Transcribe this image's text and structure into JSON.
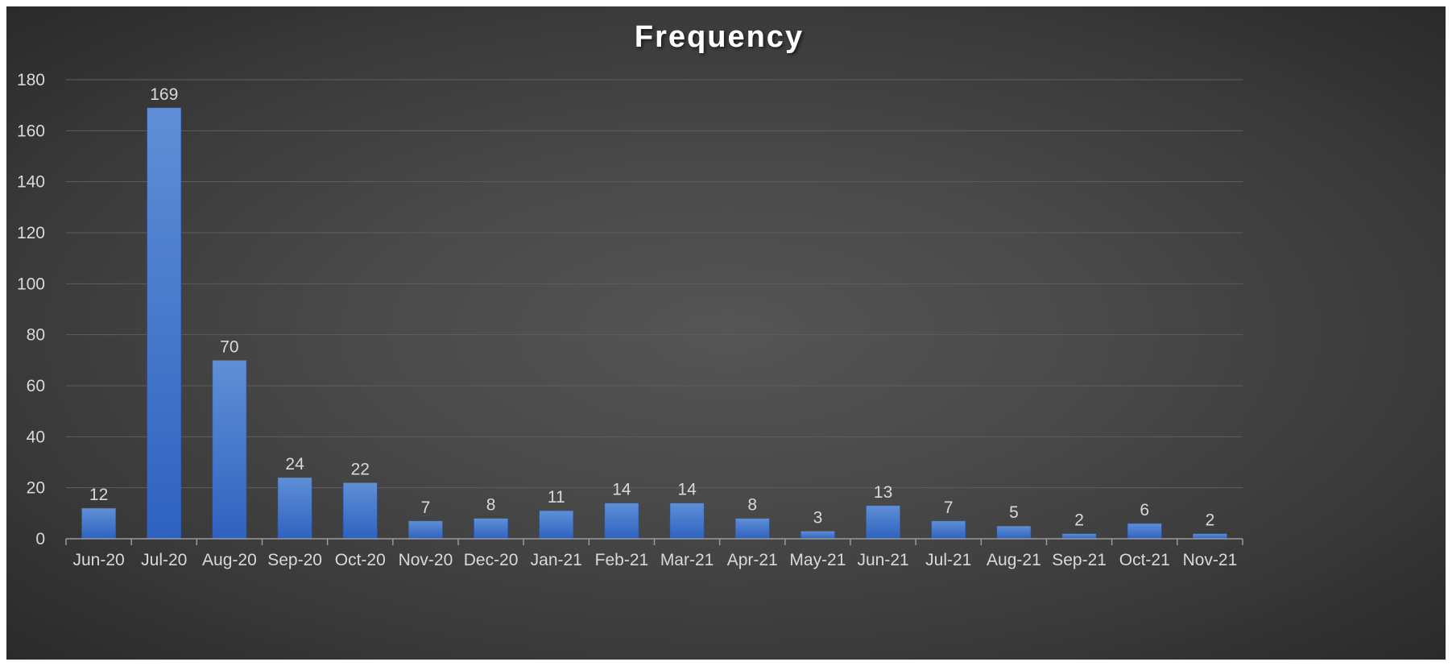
{
  "chart_data": {
    "type": "bar",
    "title": "Frequency",
    "xlabel": "",
    "ylabel": "",
    "categories": [
      "Jun-20",
      "Jul-20",
      "Aug-20",
      "Sep-20",
      "Oct-20",
      "Nov-20",
      "Dec-20",
      "Jan-21",
      "Feb-21",
      "Mar-21",
      "Apr-21",
      "May-21",
      "Jun-21",
      "Jul-21",
      "Aug-21",
      "Sep-21",
      "Oct-21",
      "Nov-21"
    ],
    "values": [
      12,
      169,
      70,
      24,
      22,
      7,
      8,
      11,
      14,
      14,
      8,
      3,
      13,
      7,
      5,
      2,
      6,
      2
    ],
    "ylim": [
      0,
      180
    ],
    "yticks": [
      0,
      20,
      40,
      60,
      80,
      100,
      120,
      140,
      160,
      180
    ],
    "grid": true,
    "legend": "none",
    "data_labels": true,
    "colors": {
      "bar_top": "#5f8fd6",
      "bar_bottom": "#2f62c0",
      "background": "#4a4a4a"
    }
  }
}
